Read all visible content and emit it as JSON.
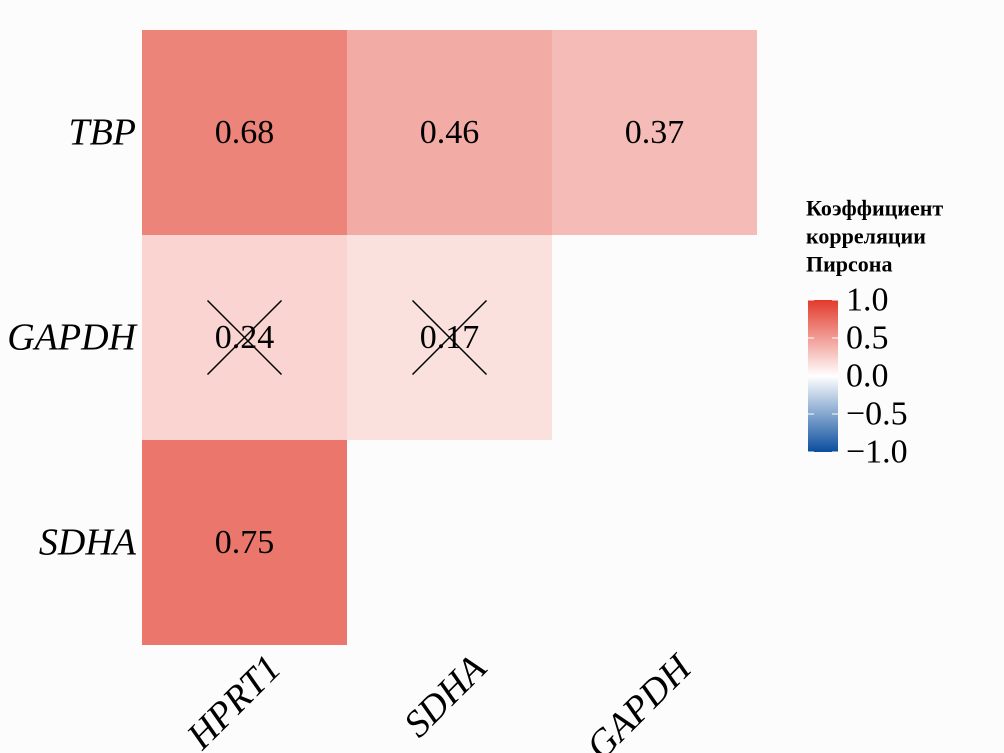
{
  "chart_data": {
    "type": "heatmap",
    "x_categories": [
      "HPRT1",
      "SDHA",
      "GAPDH"
    ],
    "y_categories": [
      "TBP",
      "GAPDH",
      "SDHA"
    ],
    "values": [
      [
        0.68,
        0.46,
        0.37
      ],
      [
        0.24,
        0.17,
        null
      ],
      [
        0.75,
        null,
        null
      ]
    ],
    "crossed": [
      [
        false,
        false,
        false
      ],
      [
        true,
        true,
        null
      ],
      [
        false,
        null,
        null
      ]
    ],
    "legend_title": [
      "Коэффициент",
      "корреляции",
      "Пирсона"
    ],
    "colorbar_lim": [
      -1,
      1
    ],
    "colorbar_ticks": [
      {
        "value": 1,
        "label": "1.0"
      },
      0.5,
      {
        "value": 0,
        "label": "0.0"
      },
      {
        "value": -0.5,
        "label": "−0.5"
      },
      {
        "value": -1,
        "label": "−1.0"
      }
    ],
    "colors": {
      "low": "#0b4e9e",
      "mid": "#ffffff",
      "high": "#e23a2b"
    }
  }
}
